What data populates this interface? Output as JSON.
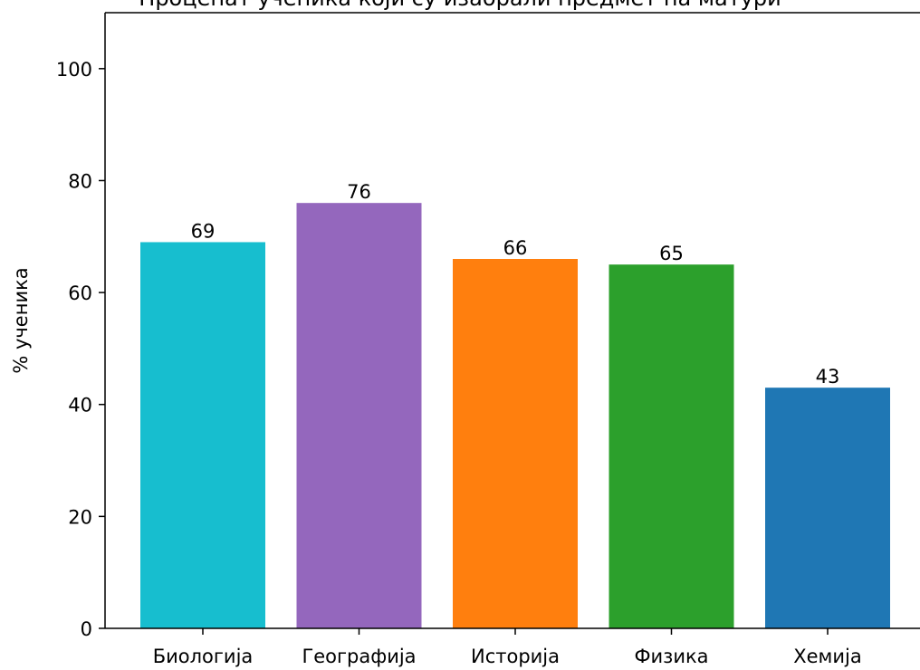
{
  "chart_data": {
    "type": "bar",
    "title": "Проценат ученика који су изабрали предмет на матури",
    "xlabel": "",
    "ylabel": "% ученика",
    "categories": [
      "Биологија",
      "Географија",
      "Историја",
      "Физика",
      "Хемија"
    ],
    "values": [
      69,
      76,
      66,
      65,
      43
    ],
    "colors": [
      "#17becf",
      "#9467bd",
      "#ff7f0e",
      "#2ca02c",
      "#1f77b4"
    ],
    "ylim": [
      0,
      110
    ],
    "yticks": [
      0,
      20,
      40,
      60,
      80,
      100
    ],
    "grid": false,
    "legend": "none"
  }
}
